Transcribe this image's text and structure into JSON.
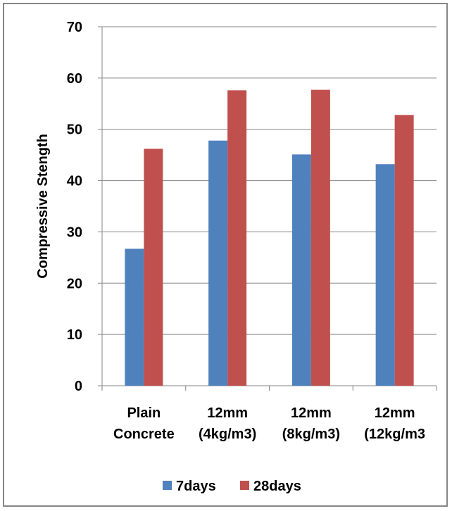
{
  "chart_data": {
    "type": "bar",
    "title": "",
    "xlabel": "",
    "ylabel": "Compressive Stength",
    "ylim": [
      0,
      70
    ],
    "yticks": [
      0,
      10,
      20,
      30,
      40,
      50,
      60,
      70
    ],
    "grid": true,
    "legend_position": "bottom",
    "categories": [
      [
        "Plain",
        "Concrete"
      ],
      [
        "12mm",
        "(4kg/m3)"
      ],
      [
        "12mm",
        "(8kg/m3)"
      ],
      [
        "12mm",
        "(12kg/m3"
      ]
    ],
    "series": [
      {
        "name": "7days",
        "color": "#4F81BD",
        "values": [
          26.7,
          47.8,
          45.1,
          43.2
        ]
      },
      {
        "name": "28days",
        "color": "#C0504D",
        "values": [
          46.2,
          57.6,
          57.7,
          52.8
        ]
      }
    ]
  }
}
